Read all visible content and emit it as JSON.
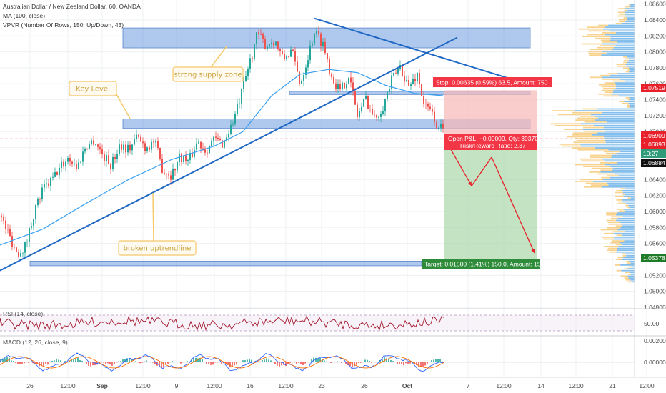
{
  "header": {
    "symbol_line": "Australian Dollar / New Zealand Dollar, 60, OANDA",
    "ma_line": "MA (100, close)",
    "vpvr_line": "VPVR (Number Of Rows, 150, Up/Down, 43)"
  },
  "annotations": {
    "strong_supply": "strong supply zone",
    "key_level": "Key Level",
    "broken_trendline": "broken uptrendline"
  },
  "position": {
    "stop_label": "Stop: 0.00635 (0.59%) 63.5, Amount: 750",
    "pnl_label": "Open P&L: −0.00009, Qty: 39370",
    "rr_label": "Risk/Reward Ratio: 2.37",
    "target_label": "Target: 0.01500 (1.41%) 150.0, Amount: 1592.91"
  },
  "price_badges": [
    {
      "text": "1.07519",
      "color": "#e8202a"
    },
    {
      "text": "1.06909",
      "color": "#e8202a"
    },
    {
      "text": "1.06893",
      "color": "#e8202a"
    },
    {
      "text": "10:27",
      "color": "#2f9b78"
    },
    {
      "text": "1.06884",
      "color": "#111111"
    },
    {
      "text": "1.05378",
      "color": "#1e7b27"
    }
  ],
  "indicators": {
    "rsi_label": "RSI (14, close)",
    "rsi_value": "50.00",
    "macd_label": "MACD (12, 26, close, 9)",
    "macd_ticks": [
      "0.00200",
      "0.00000",
      "-0.00200"
    ]
  },
  "colors": {
    "bull": "#26a69a",
    "bear": "#ef5350",
    "ma": "#3aa0f0",
    "zone": "#6b9be0",
    "trendline": "#1f68c4",
    "callout": "#f5c86a",
    "stop_zone": "#f8b8b8",
    "target_zone": "#a9d7a9"
  },
  "chart_data": {
    "type": "candlestick",
    "instrument": "Australian Dollar / New Zealand Dollar",
    "timeframe": "60",
    "ylim": [
      1.048,
      1.0865
    ],
    "y_ticks": [
      "1.08600",
      "1.08400",
      "1.08200",
      "1.08000",
      "1.07800",
      "1.07600",
      "1.07400",
      "1.07200",
      "1.07000",
      "1.06800",
      "1.06600",
      "1.06400",
      "1.06200",
      "1.06000",
      "1.05800",
      "1.05600",
      "1.05400",
      "1.05200",
      "1.05000",
      "1.04800"
    ],
    "x_ticks": [
      "26",
      "12:00",
      "Sep",
      "12:00",
      "9",
      "12:00",
      "16",
      "12:00",
      "23",
      "26",
      "Oct",
      "7",
      "12:00",
      "14",
      "12:00",
      "21",
      "12:00"
    ],
    "close_path": [
      [
        0,
        1.0595
      ],
      [
        12,
        1.0572
      ],
      [
        24,
        1.0548
      ],
      [
        36,
        1.0558
      ],
      [
        48,
        1.06
      ],
      [
        60,
        1.0627
      ],
      [
        72,
        1.0638
      ],
      [
        84,
        1.0655
      ],
      [
        96,
        1.0668
      ],
      [
        108,
        1.0655
      ],
      [
        120,
        1.0682
      ],
      [
        132,
        1.069
      ],
      [
        144,
        1.067
      ],
      [
        156,
        1.0658
      ],
      [
        168,
        1.0685
      ],
      [
        180,
        1.0678
      ],
      [
        192,
        1.0694
      ],
      [
        204,
        1.068
      ],
      [
        216,
        1.0688
      ],
      [
        228,
        1.0652
      ],
      [
        240,
        1.0646
      ],
      [
        252,
        1.067
      ],
      [
        264,
        1.0662
      ],
      [
        276,
        1.0688
      ],
      [
        288,
        1.0678
      ],
      [
        300,
        1.069
      ],
      [
        312,
        1.0685
      ],
      [
        324,
        1.0708
      ],
      [
        336,
        1.074
      ],
      [
        348,
        1.0782
      ],
      [
        360,
        1.0822
      ],
      [
        372,
        1.0808
      ],
      [
        384,
        1.0815
      ],
      [
        396,
        1.079
      ],
      [
        408,
        1.0802
      ],
      [
        420,
        1.076
      ],
      [
        432,
        1.0798
      ],
      [
        440,
        1.0826
      ],
      [
        452,
        1.081
      ],
      [
        464,
        1.077
      ],
      [
        476,
        1.075
      ],
      [
        488,
        1.0772
      ],
      [
        500,
        1.072
      ],
      [
        512,
        1.0742
      ],
      [
        524,
        1.0716
      ],
      [
        536,
        1.0732
      ],
      [
        548,
        1.0764
      ],
      [
        560,
        1.0782
      ],
      [
        572,
        1.0756
      ],
      [
        584,
        1.0772
      ],
      [
        594,
        1.0732
      ],
      [
        606,
        1.0722
      ],
      [
        614,
        1.07
      ],
      [
        620,
        1.071
      ]
    ],
    "ma_100": [
      [
        0,
        1.0558
      ],
      [
        60,
        1.0578
      ],
      [
        120,
        1.061
      ],
      [
        180,
        1.064
      ],
      [
        240,
        1.0665
      ],
      [
        300,
        1.0682
      ],
      [
        340,
        1.07
      ],
      [
        380,
        1.0745
      ],
      [
        420,
        1.0772
      ],
      [
        460,
        1.0778
      ],
      [
        500,
        1.0774
      ],
      [
        540,
        1.0758
      ],
      [
        580,
        1.0748
      ],
      [
        620,
        1.0745
      ]
    ],
    "supply_zone": [
      1.083,
      1.0805
    ],
    "key_level_zone": [
      1.0716,
      1.0704
    ],
    "resistance_zone": [
      1.07505,
      1.07465
    ],
    "support_zone": [
      1.05378,
      1.0532
    ],
    "uptrendline": [
      [
        0,
        1.0526
      ],
      [
        640,
        1.0818
      ]
    ],
    "downtrendline": [
      [
        440,
        1.0842
      ],
      [
        715,
        1.0766
      ]
    ],
    "position": {
      "entry": 1.06884,
      "stop": 1.07519,
      "target": 1.05378,
      "start_bar": 622,
      "end_bar": 752
    },
    "projection": [
      [
        622,
        1.0692
      ],
      [
        660,
        1.0632
      ],
      [
        688,
        1.0668
      ],
      [
        748,
        1.0548
      ]
    ],
    "current_price": 1.06909,
    "current_time": "10:27",
    "rsi": {
      "name": "RSI (14, close)",
      "level": 50.0,
      "band": [
        30,
        70
      ]
    },
    "macd": {
      "name": "MACD (12, 26, close, 9)",
      "ticks": [
        0.002,
        0.0,
        -0.002
      ]
    }
  }
}
